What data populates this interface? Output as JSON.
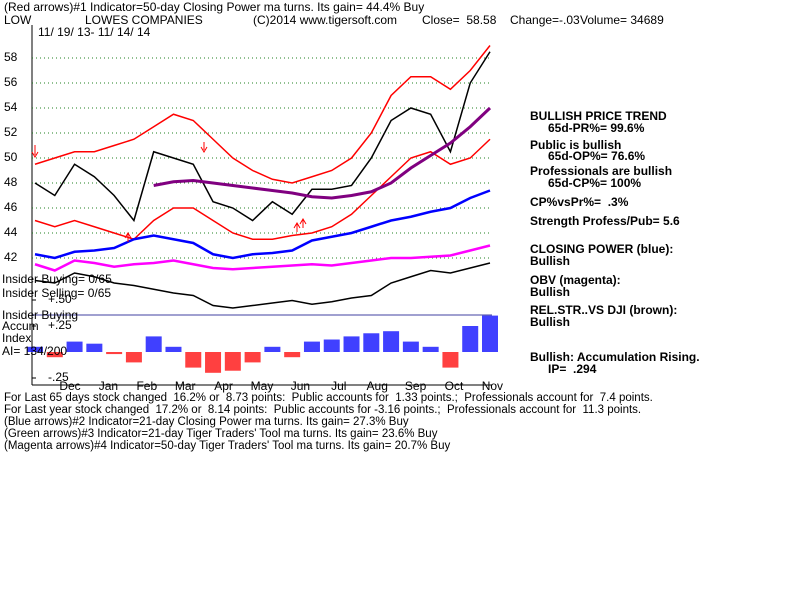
{
  "header": {
    "line1": "(Red arrows)#1 Indicator=50-day Closing Power ma turns. Its gain= 44.4% Buy",
    "ticker": "LOW",
    "company": "LOWES COMPANIES",
    "copyright": "(C)2014 www.tigersoft.com",
    "close": "Close=  58.58",
    "change": "Change=-.03",
    "volume": "Volume= 34689",
    "dates": "11/ 19/ 13- 11/ 14/ 14"
  },
  "side_panel": [
    "BULLISH PRICE TREND",
    "65d-PR%= 99.6%",
    "Public is bullish",
    "65d-OP%= 76.6%",
    "Professionals are bullish",
    "65d-CP%= 100%",
    "CP%vsPr%=  .3%",
    "Strength Profess/Pub= 5.6",
    "CLOSING POWER (blue):",
    "Bullish",
    "OBV (magenta):",
    "Bullish",
    "REL.STR..VS DJI (brown):",
    "Bullish",
    "Bullish: Accumulation Rising.",
    "IP=  .294"
  ],
  "inset_labels": [
    "Insider Buying= 0/65",
    "Insider Selling= 0/65",
    "Insider Buying",
    "Accum",
    "Index",
    "AI= 134/200"
  ],
  "footer": [
    "For Last 65 days stock changed  16.2% or  8.73 points:  Public accounts for  1.33 points.;  Professionals account for  7.4 points.",
    "For Last year stock changed  17.2% or  8.14 points:  Public accounts for -3.16 points.;  Professionals account for  11.3 points.",
    "(Blue arrows)#2 Indicator=21-day Closing Power ma turns. Its gain= 27.3% Buy",
    "(Green arrows)#3 Indicator=21-day Tiger Traders' Tool ma turns. Its gain= 23.6% Buy",
    "(Magenta arrows)#4 Indicator=50-day Tiger Traders' Tool ma turns. Its gain= 20.7% Buy"
  ],
  "chart_data": {
    "type": "line",
    "months": [
      "Dec",
      "Jan",
      "Feb",
      "Mar",
      "Apr",
      "May",
      "Jun",
      "Jul",
      "Aug",
      "Sep",
      "Oct",
      "Nov"
    ],
    "ylim": [
      39,
      60
    ],
    "yticks": [
      42,
      44,
      46,
      48,
      50,
      52,
      54,
      56,
      58
    ],
    "grid": true,
    "series": [
      {
        "color": "#ff0000",
        "values": [
          49.5,
          50,
          50.5,
          50.5,
          51,
          51.5,
          52.5,
          53.5,
          53,
          51.5,
          50,
          49,
          48.3,
          48,
          48.5,
          49,
          50,
          52,
          55,
          56.5,
          56.5,
          55.5,
          57,
          59
        ]
      },
      {
        "color": "#ff0000",
        "values": [
          45,
          44.5,
          45,
          44.5,
          44,
          43.5,
          45,
          46,
          46,
          45,
          44,
          43.5,
          43.5,
          43.8,
          44,
          44.5,
          45.5,
          47,
          48.5,
          50,
          50.5,
          49.5,
          50,
          51.5
        ]
      },
      {
        "color": "#000000",
        "values": [
          48,
          47,
          49.5,
          48.5,
          47,
          45,
          50.5,
          50,
          49.5,
          46.5,
          46,
          45,
          46.5,
          45.5,
          47.5,
          47.5,
          47.8,
          50,
          53,
          54,
          53.5,
          50.5,
          56,
          58.5
        ]
      },
      {
        "color": "#800080",
        "values": [
          null,
          null,
          null,
          null,
          null,
          null,
          47.8,
          48.1,
          48.2,
          48,
          47.8,
          47.6,
          47.4,
          47.2,
          46.9,
          46.8,
          47,
          47.3,
          48,
          49.2,
          50.2,
          51.2,
          52.5,
          54
        ]
      },
      {
        "color": "#0000ff",
        "values": [
          42.3,
          42,
          42.5,
          42.6,
          42.8,
          43.5,
          43.8,
          43.5,
          43.2,
          42.3,
          42,
          42.3,
          42.4,
          42.6,
          43.4,
          43.7,
          44,
          44.5,
          45,
          45.3,
          45.7,
          46,
          46.8,
          47.4
        ]
      },
      {
        "color": "#ff00ff",
        "values": [
          41.5,
          41,
          41.8,
          41.6,
          41.3,
          41.5,
          41.6,
          41.8,
          41.5,
          41.2,
          41.1,
          41.2,
          41.3,
          41.4,
          41.5,
          41.4,
          41.6,
          41.8,
          42,
          42,
          42.1,
          42.2,
          42.6,
          43
        ]
      },
      {
        "color": "#000000",
        "values": [
          40.2,
          40,
          40.8,
          40.5,
          40,
          39.8,
          39.5,
          39.2,
          39,
          38.2,
          38,
          38.2,
          38.4,
          38.6,
          38.3,
          38.5,
          38.8,
          39,
          40,
          40.5,
          41,
          40.8,
          41.2,
          41.6
        ]
      }
    ],
    "accumulation": {
      "pos_color": "#0000ff",
      "neg_color": "#ff0000",
      "values": [
        0.05,
        -0.05,
        0.1,
        0.08,
        -0.02,
        -0.1,
        0.15,
        0.05,
        -0.15,
        -0.2,
        -0.18,
        -0.1,
        0.05,
        -0.05,
        0.1,
        0.12,
        0.15,
        0.18,
        0.2,
        0.1,
        0.05,
        -0.15,
        0.25,
        0.35
      ],
      "y2lim": [
        -0.3,
        0.55
      ],
      "y2ticks": [
        {
          "value": 0.5,
          "label": "+.50"
        },
        {
          "value": 0.25,
          "label": "+.25"
        },
        {
          "value": -0.25,
          "label": "-.25"
        }
      ]
    }
  }
}
